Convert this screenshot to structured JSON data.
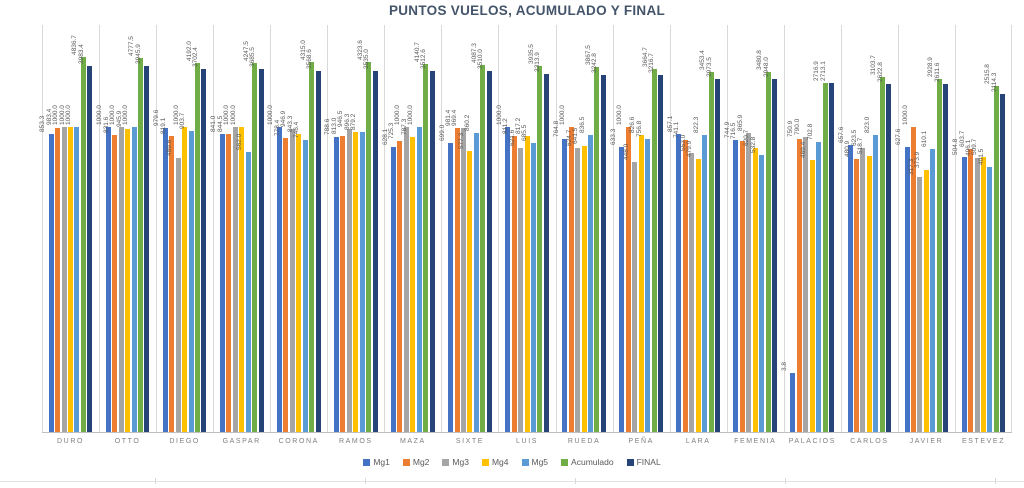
{
  "title": "PUNTOS VUELOS, ACUMULADO Y FINAL",
  "chart_data": {
    "type": "bar",
    "title": "PUNTOS VUELOS, ACUMULADO Y FINAL",
    "categories": [
      "DURO",
      "OTTO",
      "DIEGO",
      "GASPAR",
      "CORONA",
      "RAMOS",
      "MAZA",
      "SIXTE",
      "LUIS",
      "RUEDA",
      "PEÑA",
      "LARA",
      "FEMENIA",
      "PALACIOS",
      "CARLOS",
      "JAVIER",
      "ESTEVEZ"
    ],
    "series": [
      {
        "name": "Mg1",
        "color": "#4472C4",
        "values": [
          853.3,
          1000.0,
          979.6,
          841.0,
          1000.0,
          788.6,
          628.1,
          699.0,
          1000.0,
          764.8,
          633.3,
          857.1,
          744.9,
          3.8,
          657.6,
          627.6,
          504.8
        ]
      },
      {
        "name": "Mg2",
        "color": "#ED7D31",
        "values": [
          983.4,
          831.6,
          819.1,
          844.5,
          778.4,
          813.0,
          725.3,
          981.4,
          811.2,
          1000.0,
          1000.0,
          741.1,
          716.5,
          750.9,
          480.9,
          1000.0,
          603.7
        ]
      },
      {
        "name": "Mg3",
        "color": "#A5A5A5",
        "values": [
          1000.0,
          1000.0,
          489.6,
          1000.0,
          946.9,
          946.5,
          1000.0,
          969.4,
          621.6,
          624.7,
          448.0,
          553.0,
          865.9,
          790.0,
          623.5,
          317.3,
          496.1
        ]
      },
      {
        "name": "Mg4",
        "color": "#FFC000",
        "values": [
          1000.0,
          945.9,
          1000.0,
          1000.0,
          843.3,
          896.3,
          787.3,
          577.3,
          817.2,
          641.5,
          826.6,
          479.9,
          620.7,
          469.4,
          518.7,
          373.9,
          509.7
        ]
      },
      {
        "name": "Mg5",
        "color": "#5B9BD5",
        "values": [
          1000.0,
          1000.0,
          903.7,
          562.0,
          746.4,
          879.2,
          1000.0,
          860.2,
          685.5,
          836.5,
          756.8,
          822.3,
          532.8,
          702.8,
          823.0,
          610.1,
          401.5
        ]
      },
      {
        "name": "Acumulado",
        "color": "#70AD47",
        "values": [
          4836.7,
          4777.5,
          4192.0,
          4247.5,
          4315.0,
          4323.6,
          4140.7,
          4087.3,
          3935.5,
          3867.5,
          3664.7,
          3453.4,
          3480.8,
          2716.9,
          3103.7,
          2928.9,
          2515.8
        ]
      },
      {
        "name": "FINAL",
        "color": "#264478",
        "values": [
          3983.4,
          3945.9,
          3702.4,
          3685.5,
          3568.6,
          3535.0,
          3512.6,
          3510.0,
          3313.9,
          3242.8,
          3216.7,
          2973.5,
          2948.0,
          2713.1,
          2622.8,
          2611.6,
          2114.3
        ]
      }
    ],
    "y_axis": {
      "scale": "log10",
      "min": 1,
      "max": 10000,
      "labels_visible": false
    },
    "grid": "vertical-category-separators",
    "legend_position": "bottom",
    "data_labels": "value, one decimal, rotated 90deg",
    "label_color": "#595959",
    "title_color": "#44546A"
  }
}
